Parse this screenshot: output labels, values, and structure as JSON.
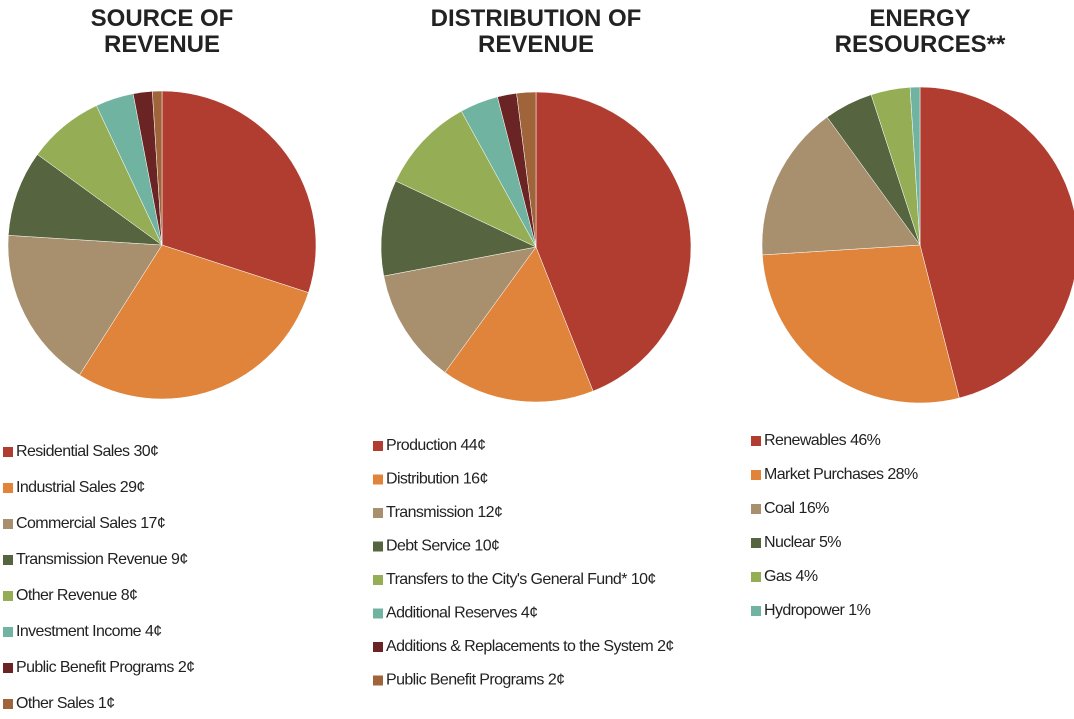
{
  "chart_data": [
    {
      "type": "pie",
      "title": "SOURCE OF REVENUE",
      "categories": [
        "Residential Sales",
        "Industrial Sales",
        "Commercial Sales",
        "Transmission Revenue",
        "Other Revenue",
        "Investment Income",
        "Public Benefit Programs",
        "Other Sales"
      ],
      "values": [
        30,
        29,
        17,
        9,
        8,
        4,
        2,
        1
      ],
      "value_labels": [
        "30¢",
        "29¢",
        "17¢",
        "9¢",
        "8¢",
        "4¢",
        "2¢",
        "1¢"
      ],
      "colors": [
        "#b13d30",
        "#e0843b",
        "#a8906e",
        "#56653f",
        "#95ad55",
        "#70b3a0",
        "#6b2424",
        "#a0643a"
      ]
    },
    {
      "type": "pie",
      "title": "DISTRIBUTION OF REVENUE",
      "categories": [
        "Production",
        "Distribution",
        "Transmission",
        "Debt Service",
        "Transfers to the City's General Fund*",
        "Additional Reserves",
        "Additions & Replacements to the System",
        "Public Benefit Programs"
      ],
      "values": [
        44,
        16,
        12,
        10,
        10,
        4,
        2,
        2
      ],
      "value_labels": [
        "44¢",
        "16¢",
        "12¢",
        "10¢",
        "10¢",
        "4¢",
        "2¢",
        "2¢"
      ],
      "colors": [
        "#b13d30",
        "#e0843b",
        "#a8906e",
        "#56653f",
        "#95ad55",
        "#70b3a0",
        "#6b2424",
        "#a0643a"
      ]
    },
    {
      "type": "pie",
      "title": "ENERGY RESOURCES**",
      "categories": [
        "Renewables",
        "Market Purchases",
        "Coal",
        "Nuclear",
        "Gas",
        "Hydropower"
      ],
      "values": [
        46,
        28,
        16,
        5,
        4,
        1
      ],
      "value_labels": [
        "46%",
        "28%",
        "16%",
        "5%",
        "4%",
        "1%"
      ],
      "colors": [
        "#b13d30",
        "#e0843b",
        "#a8906e",
        "#56653f",
        "#95ad55",
        "#70b3a0"
      ]
    }
  ]
}
